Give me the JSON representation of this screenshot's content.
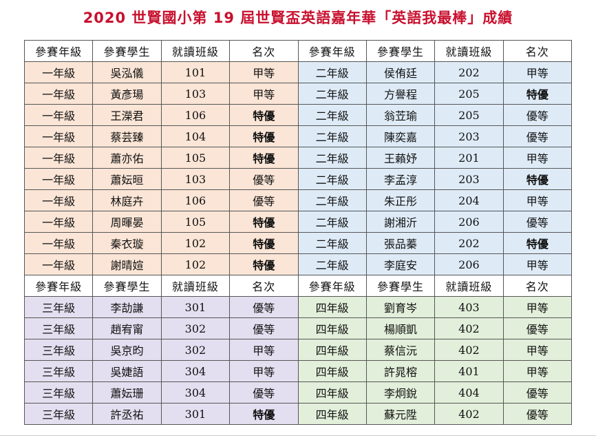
{
  "title": "2020 世賢國小第 19 屆世賢盃英語嘉年華「英語我最棒」成績",
  "headers": [
    "參賽年級",
    "參賽學生",
    "就讀班級",
    "名次"
  ],
  "colors": {
    "title": "#c8102e",
    "grade1_bg": "#fbe5d6",
    "grade2_bg": "#deebf7",
    "grade3_bg": "#e4dff0",
    "grade4_bg": "#e2efda",
    "top_rank_text": "#e00000"
  },
  "top_rank_label": "特優",
  "grade1": [
    {
      "grade": "一年級",
      "name": "吳泓儀",
      "class": "101",
      "rank": "甲等"
    },
    {
      "grade": "一年級",
      "name": "黃彥瑒",
      "class": "103",
      "rank": "甲等"
    },
    {
      "grade": "一年級",
      "name": "王濚君",
      "class": "106",
      "rank": "特優"
    },
    {
      "grade": "一年級",
      "name": "蔡芸臻",
      "class": "104",
      "rank": "特優"
    },
    {
      "grade": "一年級",
      "name": "蕭亦佑",
      "class": "105",
      "rank": "特優"
    },
    {
      "grade": "一年級",
      "name": "蕭妘晅",
      "class": "103",
      "rank": "優等"
    },
    {
      "grade": "一年級",
      "name": "林庭卉",
      "class": "106",
      "rank": "優等"
    },
    {
      "grade": "一年級",
      "name": "周暉晏",
      "class": "105",
      "rank": "特優"
    },
    {
      "grade": "一年級",
      "name": "秦衣璇",
      "class": "102",
      "rank": "特優"
    },
    {
      "grade": "一年級",
      "name": "謝晴媗",
      "class": "102",
      "rank": "特優"
    }
  ],
  "grade2": [
    {
      "grade": "二年級",
      "name": "侯侑廷",
      "class": "202",
      "rank": "甲等"
    },
    {
      "grade": "二年級",
      "name": "方譽程",
      "class": "205",
      "rank": "特優"
    },
    {
      "grade": "二年級",
      "name": "翁苙瑜",
      "class": "205",
      "rank": "優等"
    },
    {
      "grade": "二年級",
      "name": "陳奕嘉",
      "class": "203",
      "rank": "優等"
    },
    {
      "grade": "二年級",
      "name": "王藾妤",
      "class": "201",
      "rank": "甲等"
    },
    {
      "grade": "二年級",
      "name": "李孟淳",
      "class": "203",
      "rank": "特優"
    },
    {
      "grade": "二年級",
      "name": "朱正彤",
      "class": "204",
      "rank": "甲等"
    },
    {
      "grade": "二年級",
      "name": "謝湘沂",
      "class": "206",
      "rank": "優等"
    },
    {
      "grade": "二年級",
      "name": "張品蓁",
      "class": "202",
      "rank": "特優"
    },
    {
      "grade": "二年級",
      "name": "李庭安",
      "class": "206",
      "rank": "甲等"
    }
  ],
  "grade3": [
    {
      "grade": "三年級",
      "name": "李劼謙",
      "class": "301",
      "rank": "優等"
    },
    {
      "grade": "三年級",
      "name": "趙宥甯",
      "class": "302",
      "rank": "優等"
    },
    {
      "grade": "三年級",
      "name": "吳京昀",
      "class": "302",
      "rank": "甲等"
    },
    {
      "grade": "三年級",
      "name": "吳婕語",
      "class": "304",
      "rank": "甲等"
    },
    {
      "grade": "三年級",
      "name": "蕭妘珊",
      "class": "304",
      "rank": "優等"
    },
    {
      "grade": "三年級",
      "name": "許丞祐",
      "class": "301",
      "rank": "特優"
    }
  ],
  "grade4": [
    {
      "grade": "四年級",
      "name": "劉育岑",
      "class": "403",
      "rank": "甲等"
    },
    {
      "grade": "四年級",
      "name": "楊順凱",
      "class": "402",
      "rank": "優等"
    },
    {
      "grade": "四年級",
      "name": "蔡信沅",
      "class": "402",
      "rank": "甲等"
    },
    {
      "grade": "四年級",
      "name": "許晁榕",
      "class": "401",
      "rank": "甲等"
    },
    {
      "grade": "四年級",
      "name": "李炯銳",
      "class": "404",
      "rank": "優等"
    },
    {
      "grade": "四年級",
      "name": "蘇元陞",
      "class": "402",
      "rank": "優等"
    }
  ]
}
